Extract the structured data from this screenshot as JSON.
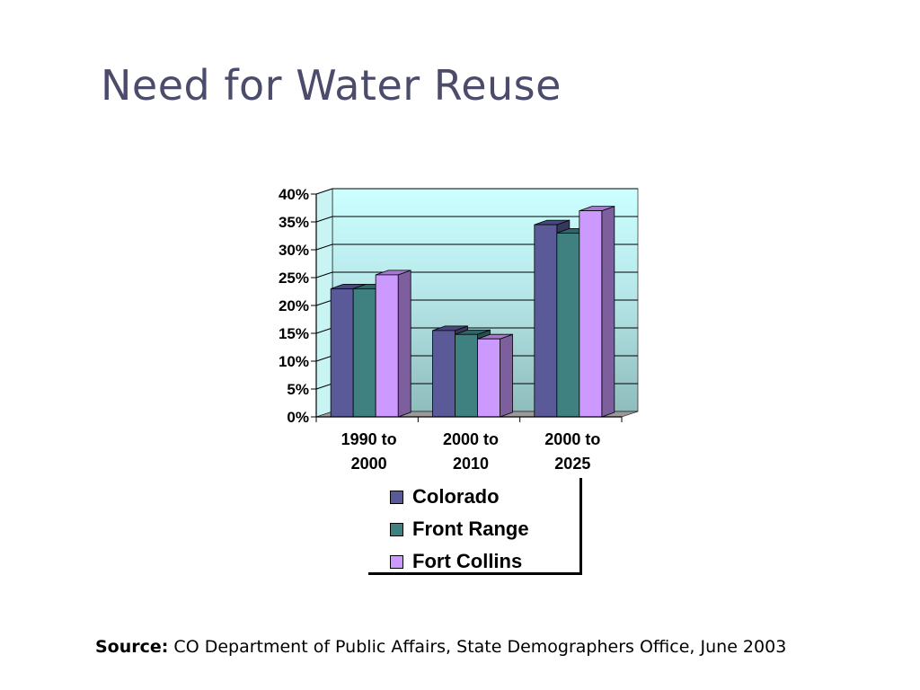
{
  "slide": {
    "title": "Need for Water Reuse",
    "source_label": "Source:",
    "source_text": " CO Department of Public Affairs, State Demographers Office, June 2003"
  },
  "chart_data": {
    "type": "bar",
    "title": "",
    "xlabel": "",
    "ylabel": "",
    "categories": [
      [
        "1990 to",
        "2000"
      ],
      [
        "2000 to",
        "2010"
      ],
      [
        "2000 to",
        "2025"
      ]
    ],
    "series": [
      {
        "name": "Colorado",
        "values": [
          0.23,
          0.155,
          0.345
        ],
        "color": "#5b5a99"
      },
      {
        "name": "Front Range",
        "values": [
          0.23,
          0.148,
          0.33
        ],
        "color": "#3f8080"
      },
      {
        "name": "Fort Collins",
        "values": [
          0.255,
          0.14,
          0.37
        ],
        "color": "#cc99ff"
      }
    ],
    "ylim": [
      0,
      0.4
    ],
    "yticks": [
      "0%",
      "5%",
      "10%",
      "15%",
      "20%",
      "25%",
      "30%",
      "35%",
      "40%"
    ],
    "grid": true,
    "style": "3d-clustered-column",
    "legend_position": "bottom"
  }
}
